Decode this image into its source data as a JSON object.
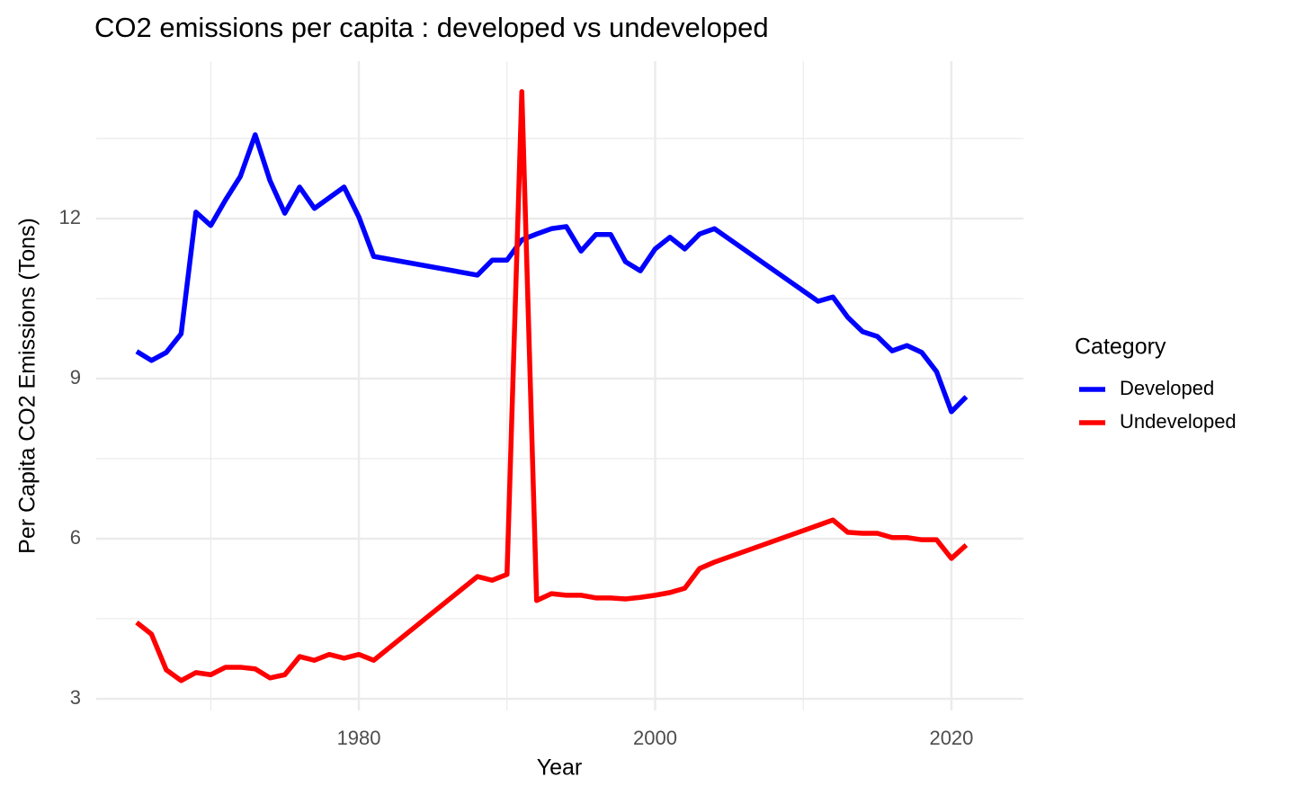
{
  "chart_data": {
    "type": "line",
    "title": "CO2 emissions per capita : developed vs undeveloped",
    "x_label": "Year",
    "y_label": "Per Capita CO2 Emissions (Tons)",
    "legend_title": "Category",
    "legend_position": "right",
    "grid": true,
    "x": [
      1965,
      1966,
      1967,
      1968,
      1969,
      1970,
      1971,
      1972,
      1973,
      1974,
      1975,
      1976,
      1977,
      1978,
      1979,
      1980,
      1981,
      1988,
      1989,
      1990,
      1991,
      1992,
      1993,
      1994,
      1995,
      1996,
      1997,
      1998,
      1999,
      2000,
      2001,
      2002,
      2003,
      2004,
      2011,
      2012,
      2013,
      2014,
      2015,
      2016,
      2017,
      2018,
      2019,
      2020,
      2021
    ],
    "series": [
      {
        "name": "Developed",
        "color": "#0000ff",
        "values": [
          9.51,
          9.34,
          9.49,
          9.84,
          12.12,
          11.87,
          12.35,
          12.79,
          13.57,
          12.71,
          12.1,
          12.59,
          12.19,
          12.39,
          12.59,
          12.03,
          11.29,
          10.94,
          11.22,
          11.22,
          11.6,
          11.71,
          11.81,
          11.85,
          11.39,
          11.7,
          11.7,
          11.19,
          11.02,
          11.43,
          11.65,
          11.43,
          11.71,
          11.81,
          10.45,
          10.53,
          10.15,
          9.88,
          9.79,
          9.52,
          9.62,
          9.49,
          9.13,
          8.38,
          8.66
        ]
      },
      {
        "name": "Undeveloped",
        "color": "#ff0000",
        "values": [
          4.43,
          4.21,
          3.54,
          3.34,
          3.49,
          3.45,
          3.59,
          3.59,
          3.56,
          3.39,
          3.45,
          3.79,
          3.72,
          3.83,
          3.76,
          3.83,
          3.72,
          5.29,
          5.22,
          5.33,
          14.38,
          4.84,
          4.97,
          4.94,
          4.94,
          4.89,
          4.89,
          4.87,
          4.9,
          4.94,
          4.99,
          5.07,
          5.44,
          5.56,
          6.25,
          6.35,
          6.12,
          6.1,
          6.1,
          6.02,
          6.02,
          5.98,
          5.98,
          5.63,
          5.88
        ]
      }
    ],
    "xlim": [
      1962.27,
      2024.86
    ],
    "ylim": [
      2.78,
      14.95
    ],
    "xticks": [
      1980,
      2000,
      2020
    ],
    "yticks": [
      3,
      6,
      9,
      12
    ],
    "x_minor_grid": [
      1970,
      1990,
      2010
    ],
    "y_minor_grid": [
      4.5,
      7.5,
      10.5,
      13.5
    ]
  }
}
